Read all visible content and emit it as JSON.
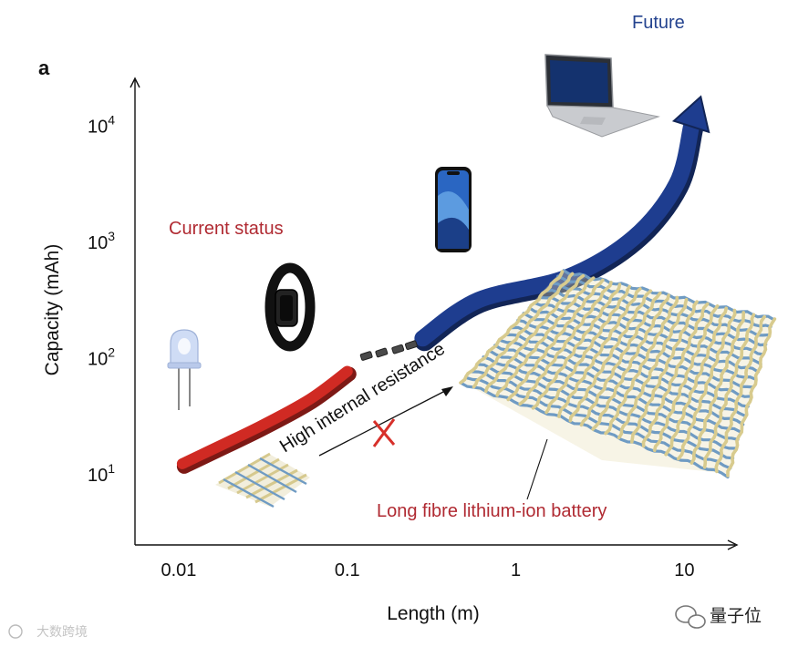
{
  "panel_label": "a",
  "chart_data": {
    "type": "line",
    "xlabel": "Length (m)",
    "ylabel": "Capacity (mAh)",
    "x_scale": "log",
    "y_scale": "log",
    "x_ticks": [
      {
        "value": 0.01,
        "label": "0.01"
      },
      {
        "value": 0.1,
        "label": "0.1"
      },
      {
        "value": 1,
        "label": "1"
      },
      {
        "value": 10,
        "label": "10"
      }
    ],
    "y_ticks": [
      {
        "value": 10,
        "base": "10",
        "exp": "1"
      },
      {
        "value": 100,
        "base": "10",
        "exp": "2"
      },
      {
        "value": 1000,
        "base": "10",
        "exp": "3"
      },
      {
        "value": 10000,
        "base": "10",
        "exp": "4"
      }
    ],
    "xlim": [
      0.0055,
      20
    ],
    "ylim": [
      2.5,
      25000
    ],
    "series": [
      {
        "name": "Current status",
        "color": "#d02a23",
        "points": [
          [
            0.0105,
            12.5
          ],
          [
            0.03,
            26
          ],
          [
            0.06,
            45
          ],
          [
            0.1,
            78
          ]
        ]
      },
      {
        "name": "Future",
        "color": "#1e3d8f",
        "points": [
          [
            0.28,
            150
          ],
          [
            0.6,
            320
          ],
          [
            2,
            500
          ],
          [
            5,
            1100
          ],
          [
            9,
            3200
          ],
          [
            11,
            10000
          ],
          [
            12.5,
            18000
          ]
        ]
      }
    ],
    "gap_segments": [
      [
        0.13,
        105
      ],
      [
        0.16,
        112
      ],
      [
        0.2,
        120
      ],
      [
        0.24,
        130
      ]
    ],
    "annotations": [
      {
        "text": "Current status",
        "color": "#b02a32"
      },
      {
        "text": "Future",
        "color": "#24438f"
      },
      {
        "text": "High internal resistance",
        "color": "#111111"
      },
      {
        "text": "Long fibre lithium-ion battery",
        "color": "#b02a32"
      }
    ]
  },
  "watermarks": {
    "left": "大数跨境",
    "right": "量子位"
  }
}
